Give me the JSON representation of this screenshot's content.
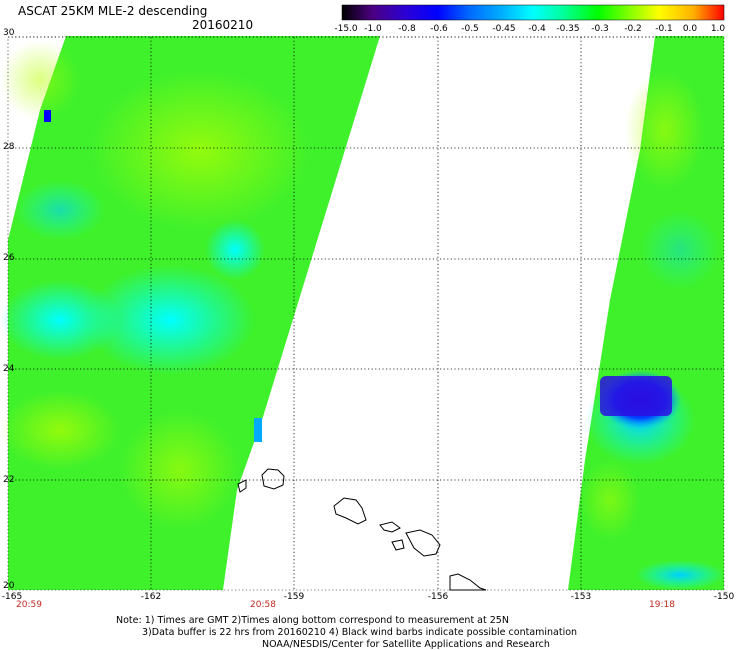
{
  "header": {
    "title": "ASCAT 25KM MLE-2 descending",
    "date": "20160210"
  },
  "colorbar": {
    "labels": [
      "-15.0",
      "-1.0",
      "-0.8",
      "-0.6",
      "-0.5",
      "-0.45",
      "-0.4",
      "-0.35",
      "-0.3",
      "-0.2",
      "-0.1",
      "0.0",
      "1.0"
    ],
    "colors": [
      "#000000",
      "#4b0082",
      "#2a00d8",
      "#0000ff",
      "#0066ff",
      "#00b0ff",
      "#00ffff",
      "#00ff99",
      "#00ff00",
      "#7fff00",
      "#ffff00",
      "#ffb000",
      "#ff0000"
    ]
  },
  "chart_data": {
    "type": "heatmap",
    "title": "ASCAT 25KM MLE-2 descending",
    "subtitle": "20160210",
    "x_ticks": [
      "-165",
      "-162",
      "-159",
      "-156",
      "-153",
      "-150"
    ],
    "y_ticks": [
      "30",
      "28",
      "26",
      "24",
      "22",
      "20"
    ],
    "xlim": [
      -165,
      -150
    ],
    "ylim": [
      20,
      30
    ],
    "grid": true,
    "swaths": [
      {
        "name": "west",
        "time": "20:59",
        "dominant_range": "-0.35 to -0.2"
      },
      {
        "name": "center",
        "time": "20:58",
        "dominant_range": "-0.35 to -0.3"
      },
      {
        "name": "east",
        "time": "19:18",
        "dominant_range": "-0.35 to -0.3",
        "min_region_range": "-0.8 to -0.6"
      }
    ],
    "time_labels": [
      {
        "lon": -164.4,
        "label": "20:59"
      },
      {
        "lon": -160.2,
        "label": "20:58"
      },
      {
        "lon": -151.6,
        "label": "19:18"
      }
    ]
  },
  "notes": {
    "line1": "Note: 1) Times are GMT 2)Times along bottom correspond to measurement at 25N",
    "line2": "3)Data buffer is 22 hrs from 20160210 4) Black wind barbs indicate possible contamination",
    "line3": "NOAA/NESDIS/Center for Satellite Applications and Research"
  }
}
